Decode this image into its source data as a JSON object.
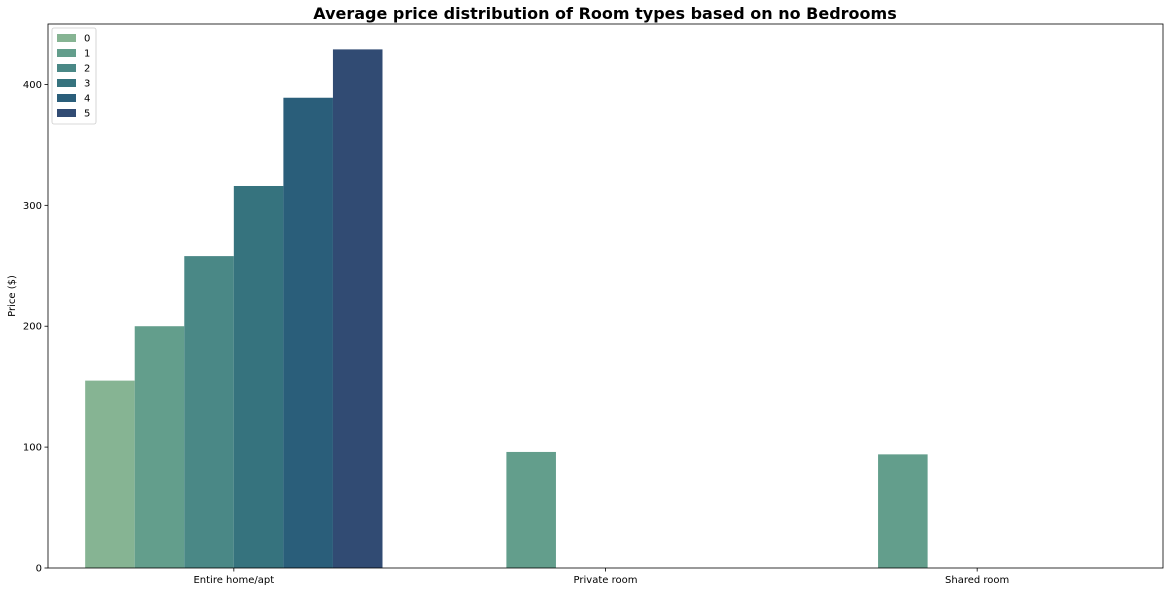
{
  "chart_data": {
    "type": "bar",
    "title": "Average price distribution of Room types based on no Bedrooms",
    "xlabel": "",
    "ylabel": "Price ($)",
    "ylim": [
      0,
      450
    ],
    "yticks": [
      0,
      100,
      200,
      300,
      400
    ],
    "categories": [
      "Entire home/apt",
      "Private room",
      "Shared room"
    ],
    "series": [
      {
        "name": "0",
        "color": "#86b493",
        "values": [
          155,
          null,
          null
        ]
      },
      {
        "name": "1",
        "color": "#639e8c",
        "values": [
          200,
          96,
          94
        ]
      },
      {
        "name": "2",
        "color": "#4a8886",
        "values": [
          258,
          null,
          null
        ]
      },
      {
        "name": "3",
        "color": "#36737e",
        "values": [
          316,
          null,
          null
        ]
      },
      {
        "name": "4",
        "color": "#2a5e7a",
        "values": [
          389,
          null,
          null
        ]
      },
      {
        "name": "5",
        "color": "#314b73",
        "values": [
          429,
          null,
          null
        ]
      }
    ],
    "grid": false,
    "legend": {
      "position": "top-left"
    }
  }
}
